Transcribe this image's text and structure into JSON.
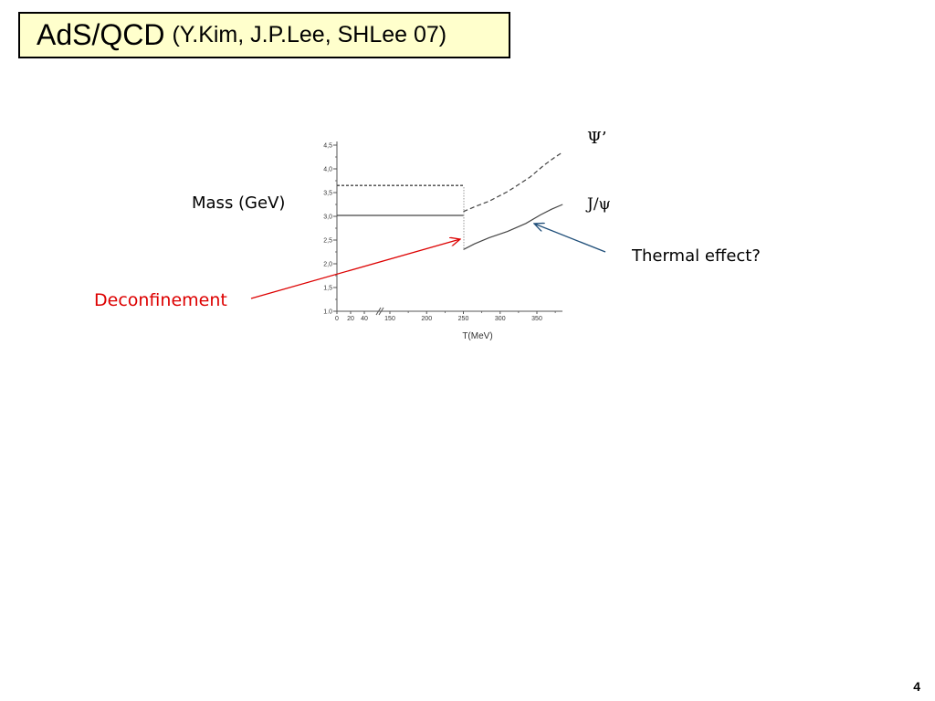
{
  "slide": {
    "title_main": "AdS/QCD",
    "title_sub": "(Y.Kim, J.P.Lee, SHLee 07)",
    "page_number": "4"
  },
  "annotations": {
    "mass_label": "Mass (GeV)",
    "deconfinement": "Deconfinement",
    "thermal_effect": "Thermal effect?",
    "psi_prime": "Ψ’",
    "jpsi": "J/ψ"
  },
  "colors": {
    "title_bg": "#ffffcc",
    "deconfinement_arrow": "#dd0000",
    "thermal_arrow": "#1f4e79"
  },
  "chart_data": {
    "type": "line",
    "xlabel": "T(MeV)",
    "ylabel": "",
    "x_ticks": [
      "0",
      "20",
      "40",
      "150",
      "200",
      "250",
      "300",
      "350"
    ],
    "y_ticks": [
      "1.0",
      "1,5",
      "2,0",
      "2,5",
      "3,0",
      "3,5",
      "4,0",
      "4,5"
    ],
    "ylim": [
      1.0,
      4.6
    ],
    "x_axis_break": true,
    "series": [
      {
        "name": "Ψ’",
        "style": "dashed",
        "segments": [
          [
            [
              0,
              3.65
            ],
            [
              250,
              3.65
            ]
          ],
          [
            [
              250,
              3.1
            ],
            [
              265,
              3.2
            ],
            [
              285,
              3.32
            ],
            [
              310,
              3.52
            ],
            [
              340,
              3.82
            ],
            [
              360,
              4.08
            ],
            [
              375,
              4.25
            ],
            [
              385,
              4.35
            ]
          ]
        ]
      },
      {
        "name": "J/ψ",
        "style": "solid",
        "segments": [
          [
            [
              0,
              3.02
            ],
            [
              250,
              3.02
            ]
          ],
          [
            [
              250,
              2.3
            ],
            [
              265,
              2.42
            ],
            [
              285,
              2.55
            ],
            [
              310,
              2.68
            ],
            [
              335,
              2.85
            ],
            [
              355,
              3.03
            ],
            [
              370,
              3.15
            ],
            [
              385,
              3.25
            ]
          ]
        ]
      }
    ],
    "deconfinement_T": 250
  }
}
